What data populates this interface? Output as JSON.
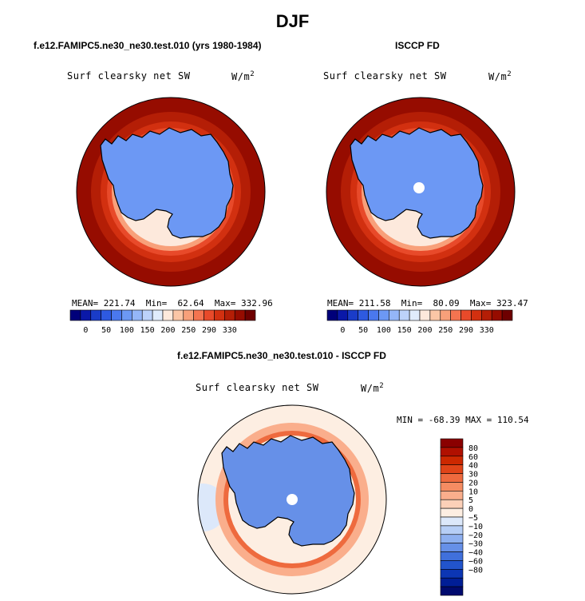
{
  "page": {
    "title": "DJF"
  },
  "colors": {
    "coast": "#000000",
    "pole_hole": "#ffffff",
    "ocean_warm": "#c42400",
    "ice_blue": "#3a68e0"
  },
  "icons": [
    "antarctica-map",
    "colorbar"
  ],
  "panels": [
    {
      "id": "model",
      "title": "f.e12.FAMIPC5.ne30_ne30.test.010 (yrs 1980-1984)",
      "variable": "Surf clearsky net SW",
      "units_base": "W/m",
      "units_exp": "2",
      "stats": {
        "mean_label": "MEAN=",
        "mean": "221.74",
        "min_label": "Min=",
        "min": "62.64",
        "max_label": "Max=",
        "max": "332.96"
      }
    },
    {
      "id": "obs",
      "title": "ISCCP FD",
      "variable": "Surf clearsky net SW",
      "units_base": "W/m",
      "units_exp": "2",
      "stats": {
        "mean_label": "MEAN=",
        "mean": "211.58",
        "min_label": "Min=",
        "min": "80.09",
        "max_label": "Max=",
        "max": "323.47"
      }
    },
    {
      "id": "diff",
      "title": "f.e12.FAMIPC5.ne30_ne30.test.010 - ISCCP FD",
      "variable": "Surf clearsky net SW",
      "units_base": "W/m",
      "units_exp": "2",
      "stats_text": "MIN = -68.39 MAX = 110.54"
    }
  ],
  "chart_data": [
    {
      "type": "heatmap",
      "projection": "south-polar-stereographic",
      "title": "f.e12.FAMIPC5.ne30_ne30.test.010 (yrs 1980-1984)",
      "variable": "Surf clearsky net SW",
      "units": "W/m2",
      "mean": 221.74,
      "min": 62.64,
      "max": 332.96,
      "contour_levels": [
        0,
        50,
        100,
        150,
        200,
        250,
        290,
        330
      ],
      "colorbar_labels": [
        "0",
        "50",
        "100",
        "150",
        "200",
        "250",
        "290",
        "330"
      ],
      "colorbar_colors": [
        "#00007a",
        "#0a18a8",
        "#1a3cc8",
        "#2e5ae0",
        "#4a78ee",
        "#6c98f4",
        "#94b6f8",
        "#bcd2fa",
        "#e0ecfc",
        "#fde9dc",
        "#fbc6a6",
        "#f8a07a",
        "#f47450",
        "#e84a2a",
        "#d23010",
        "#b41e06",
        "#960c00",
        "#6e0000"
      ]
    },
    {
      "type": "heatmap",
      "projection": "south-polar-stereographic",
      "title": "ISCCP FD",
      "variable": "Surf clearsky net SW",
      "units": "W/m2",
      "mean": 211.58,
      "min": 80.09,
      "max": 323.47,
      "contour_levels": [
        0,
        50,
        100,
        150,
        200,
        250,
        290,
        330
      ],
      "colorbar_labels": [
        "0",
        "50",
        "100",
        "150",
        "200",
        "250",
        "290",
        "330"
      ],
      "colorbar_colors": [
        "#00007a",
        "#0a18a8",
        "#1a3cc8",
        "#2e5ae0",
        "#4a78ee",
        "#6c98f4",
        "#94b6f8",
        "#bcd2fa",
        "#e0ecfc",
        "#fde9dc",
        "#fbc6a6",
        "#f8a07a",
        "#f47450",
        "#e84a2a",
        "#d23010",
        "#b41e06",
        "#960c00",
        "#6e0000"
      ]
    },
    {
      "type": "heatmap",
      "projection": "south-polar-stereographic",
      "title": "f.e12.FAMIPC5.ne30_ne30.test.010 - ISCCP FD",
      "variable": "Surf clearsky net SW",
      "units": "W/m2",
      "min": -68.39,
      "max": 110.54,
      "contour_levels": [
        -80,
        -60,
        -40,
        -30,
        -20,
        -10,
        -5,
        0,
        5,
        10,
        20,
        30,
        40,
        60,
        80
      ],
      "colorbar_labels": [
        "80",
        "60",
        "40",
        "30",
        "20",
        "10",
        "5",
        "0",
        "−5",
        "−10",
        "−20",
        "−30",
        "−40",
        "−60",
        "−80"
      ],
      "colorbar_colors": [
        "#8a0000",
        "#b01000",
        "#cc2800",
        "#e04418",
        "#ee6a3e",
        "#f58c62",
        "#faae8c",
        "#fcd0b8",
        "#fdeee2",
        "#dce8fa",
        "#b6cef6",
        "#8eb0f0",
        "#6690e8",
        "#4070dc",
        "#2254cc",
        "#0c36b4",
        "#001e96",
        "#000a6e"
      ]
    }
  ]
}
